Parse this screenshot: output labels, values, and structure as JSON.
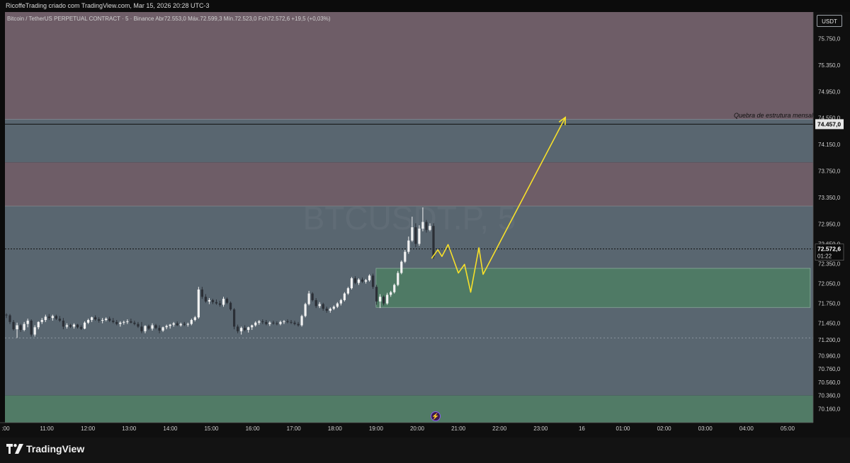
{
  "header": {
    "text": "RicoffeTrading criado com TradingView.com, Mar 15, 2026 20:28 UTC-3"
  },
  "symbol": {
    "line": "Bitcoin / TetherUS PERPETUAL CONTRACT · 5 · Binance  Abr72.553,0  Máx.72.599,3  Mín.72.523,0  Fch72.572,6  +19,5 (+0,03%)",
    "watermark": "BTCUSDT.P, 5"
  },
  "currency": "USDT",
  "annotations": {
    "level_note": "Quebra de estrutura mensal"
  },
  "branding": {
    "logo_text": "TradingView"
  },
  "chart_data": {
    "type": "candlestick",
    "ylim": [
      69950,
      76150
    ],
    "y_ticks": [
      {
        "value": 75750,
        "label": "75.750,0"
      },
      {
        "value": 75350,
        "label": "75.350,0"
      },
      {
        "value": 74950,
        "label": "74.950,0"
      },
      {
        "value": 74550,
        "label": "74.550,0"
      },
      {
        "value": 74150,
        "label": "74.150,0"
      },
      {
        "value": 73750,
        "label": "73.750,0"
      },
      {
        "value": 73350,
        "label": "73.350,0"
      },
      {
        "value": 72950,
        "label": "72.950,0"
      },
      {
        "value": 72650,
        "label": "72.650,0"
      },
      {
        "value": 72350,
        "label": "72.350,0"
      },
      {
        "value": 72050,
        "label": "72.050,0"
      },
      {
        "value": 71750,
        "label": "71.750,0"
      },
      {
        "value": 71450,
        "label": "71.450,0"
      },
      {
        "value": 71200,
        "label": "71.200,0"
      },
      {
        "value": 70960,
        "label": "70.960,0"
      },
      {
        "value": 70760,
        "label": "70.760,0"
      },
      {
        "value": 70560,
        "label": "70.560,0"
      },
      {
        "value": 70360,
        "label": "70.360,0"
      },
      {
        "value": 70160,
        "label": "70.160,0"
      }
    ],
    "x_ticks": [
      {
        "hour": 10,
        "label": ":00"
      },
      {
        "hour": 11,
        "label": "11:00"
      },
      {
        "hour": 12,
        "label": "12:00"
      },
      {
        "hour": 13,
        "label": "13:00"
      },
      {
        "hour": 14,
        "label": "14:00"
      },
      {
        "hour": 15,
        "label": "15:00"
      },
      {
        "hour": 16,
        "label": "16:00"
      },
      {
        "hour": 17,
        "label": "17:00"
      },
      {
        "hour": 18,
        "label": "18:00"
      },
      {
        "hour": 19,
        "label": "19:00"
      },
      {
        "hour": 20,
        "label": "20:00"
      },
      {
        "hour": 21,
        "label": "21:00"
      },
      {
        "hour": 22,
        "label": "22:00"
      },
      {
        "hour": 23,
        "label": "23:00"
      },
      {
        "hour": 24,
        "label": "16"
      },
      {
        "hour": 25,
        "label": "01:00"
      },
      {
        "hour": 26,
        "label": "02:00"
      },
      {
        "hour": 27,
        "label": "03:00"
      },
      {
        "hour": 28,
        "label": "04:00"
      },
      {
        "hour": 29,
        "label": "05:00"
      }
    ],
    "zones": [
      {
        "name": "supply-upper",
        "from": 74530,
        "to": 76150,
        "color": "#6e5d67"
      },
      {
        "name": "middle-upper",
        "from": 73880,
        "to": 74530,
        "color": "#596670"
      },
      {
        "name": "supply-lower",
        "from": 73220,
        "to": 73880,
        "color": "#6e5d67"
      },
      {
        "name": "middle-lower",
        "from": 70360,
        "to": 73220,
        "color": "#596670"
      },
      {
        "name": "demand-bottom",
        "from": 69950,
        "to": 70360,
        "color": "#517b66"
      }
    ],
    "demand_box": {
      "from_hour": 19.0,
      "to_hour": 29.55,
      "low": 71690,
      "high": 72280,
      "color": "#4f7a65"
    },
    "levels": [
      {
        "price": 74457,
        "style": "solid",
        "label": "74.457,0"
      },
      {
        "price": 72572.6,
        "style": "dotted",
        "label": "72.572,6",
        "countdown": "01:22"
      },
      {
        "price": 71230,
        "style": "dotted-light"
      }
    ],
    "projection": [
      {
        "hour": 20.35,
        "price": 72430
      },
      {
        "hour": 20.5,
        "price": 72560
      },
      {
        "hour": 20.6,
        "price": 72460
      },
      {
        "hour": 20.75,
        "price": 72640
      },
      {
        "hour": 21.0,
        "price": 72210
      },
      {
        "hour": 21.15,
        "price": 72340
      },
      {
        "hour": 21.3,
        "price": 71920
      },
      {
        "hour": 21.5,
        "price": 72590
      },
      {
        "hour": 21.6,
        "price": 72190
      },
      {
        "hour": 23.6,
        "price": 74560
      }
    ],
    "candles": [
      {
        "o": 71580,
        "h": 71600,
        "l": 71530,
        "c": 71570
      },
      {
        "o": 71570,
        "h": 71590,
        "l": 71440,
        "c": 71470
      },
      {
        "o": 71470,
        "h": 71500,
        "l": 71340,
        "c": 71360
      },
      {
        "o": 71360,
        "h": 71460,
        "l": 71230,
        "c": 71420
      },
      {
        "o": 71420,
        "h": 71440,
        "l": 71320,
        "c": 71350
      },
      {
        "o": 71350,
        "h": 71470,
        "l": 71330,
        "c": 71440
      },
      {
        "o": 71440,
        "h": 71520,
        "l": 71390,
        "c": 71490
      },
      {
        "o": 71490,
        "h": 71510,
        "l": 71250,
        "c": 71280
      },
      {
        "o": 71280,
        "h": 71420,
        "l": 71250,
        "c": 71390
      },
      {
        "o": 71390,
        "h": 71480,
        "l": 71360,
        "c": 71470
      },
      {
        "o": 71470,
        "h": 71530,
        "l": 71440,
        "c": 71500
      },
      {
        "o": 71500,
        "h": 71580,
        "l": 71470,
        "c": 71550
      },
      {
        "o": 71550,
        "h": 71590,
        "l": 71500,
        "c": 71530
      },
      {
        "o": 71530,
        "h": 71580,
        "l": 71490,
        "c": 71560
      },
      {
        "o": 71560,
        "h": 71580,
        "l": 71500,
        "c": 71520
      },
      {
        "o": 71520,
        "h": 71560,
        "l": 71470,
        "c": 71490
      },
      {
        "o": 71490,
        "h": 71530,
        "l": 71360,
        "c": 71400
      },
      {
        "o": 71400,
        "h": 71450,
        "l": 71370,
        "c": 71420
      },
      {
        "o": 71420,
        "h": 71440,
        "l": 71380,
        "c": 71400
      },
      {
        "o": 71400,
        "h": 71450,
        "l": 71370,
        "c": 71430
      },
      {
        "o": 71430,
        "h": 71440,
        "l": 71370,
        "c": 71390
      },
      {
        "o": 71390,
        "h": 71420,
        "l": 71350,
        "c": 71370
      },
      {
        "o": 71370,
        "h": 71480,
        "l": 71360,
        "c": 71460
      },
      {
        "o": 71460,
        "h": 71520,
        "l": 71440,
        "c": 71500
      },
      {
        "o": 71500,
        "h": 71550,
        "l": 71470,
        "c": 71540
      },
      {
        "o": 71540,
        "h": 71570,
        "l": 71490,
        "c": 71510
      },
      {
        "o": 71510,
        "h": 71540,
        "l": 71460,
        "c": 71490
      },
      {
        "o": 71490,
        "h": 71530,
        "l": 71450,
        "c": 71500
      },
      {
        "o": 71500,
        "h": 71540,
        "l": 71480,
        "c": 71520
      },
      {
        "o": 71520,
        "h": 71550,
        "l": 71470,
        "c": 71490
      },
      {
        "o": 71490,
        "h": 71530,
        "l": 71450,
        "c": 71470
      },
      {
        "o": 71470,
        "h": 71500,
        "l": 71420,
        "c": 71440
      },
      {
        "o": 71440,
        "h": 71480,
        "l": 71400,
        "c": 71460
      },
      {
        "o": 71460,
        "h": 71490,
        "l": 71430,
        "c": 71470
      },
      {
        "o": 71470,
        "h": 71510,
        "l": 71440,
        "c": 71480
      },
      {
        "o": 71480,
        "h": 71520,
        "l": 71450,
        "c": 71460
      },
      {
        "o": 71460,
        "h": 71490,
        "l": 71420,
        "c": 71440
      },
      {
        "o": 71440,
        "h": 71470,
        "l": 71380,
        "c": 71400
      },
      {
        "o": 71400,
        "h": 71470,
        "l": 71300,
        "c": 71330
      },
      {
        "o": 71330,
        "h": 71420,
        "l": 71300,
        "c": 71410
      },
      {
        "o": 71410,
        "h": 71430,
        "l": 71350,
        "c": 71370
      },
      {
        "o": 71370,
        "h": 71450,
        "l": 71340,
        "c": 71420
      },
      {
        "o": 71420,
        "h": 71440,
        "l": 71360,
        "c": 71380
      },
      {
        "o": 71380,
        "h": 71420,
        "l": 71300,
        "c": 71340
      },
      {
        "o": 71340,
        "h": 71400,
        "l": 71320,
        "c": 71390
      },
      {
        "o": 71390,
        "h": 71430,
        "l": 71360,
        "c": 71410
      },
      {
        "o": 71410,
        "h": 71440,
        "l": 71370,
        "c": 71430
      },
      {
        "o": 71430,
        "h": 71470,
        "l": 71400,
        "c": 71450
      },
      {
        "o": 71450,
        "h": 71480,
        "l": 71410,
        "c": 71420
      },
      {
        "o": 71420,
        "h": 71460,
        "l": 71400,
        "c": 71440
      },
      {
        "o": 71440,
        "h": 71470,
        "l": 71410,
        "c": 71430
      },
      {
        "o": 71430,
        "h": 71460,
        "l": 71400,
        "c": 71440
      },
      {
        "o": 71440,
        "h": 71520,
        "l": 71420,
        "c": 71500
      },
      {
        "o": 71500,
        "h": 71560,
        "l": 71480,
        "c": 71540
      },
      {
        "o": 71540,
        "h": 72000,
        "l": 71520,
        "c": 71960
      },
      {
        "o": 71960,
        "h": 72000,
        "l": 71820,
        "c": 71850
      },
      {
        "o": 71850,
        "h": 71890,
        "l": 71760,
        "c": 71780
      },
      {
        "o": 71780,
        "h": 71830,
        "l": 71740,
        "c": 71800
      },
      {
        "o": 71800,
        "h": 71820,
        "l": 71740,
        "c": 71770
      },
      {
        "o": 71770,
        "h": 71810,
        "l": 71730,
        "c": 71750
      },
      {
        "o": 71750,
        "h": 71790,
        "l": 71700,
        "c": 71730
      },
      {
        "o": 71730,
        "h": 71850,
        "l": 71700,
        "c": 71820
      },
      {
        "o": 71820,
        "h": 71840,
        "l": 71740,
        "c": 71760
      },
      {
        "o": 71760,
        "h": 71780,
        "l": 71640,
        "c": 71660
      },
      {
        "o": 71660,
        "h": 71680,
        "l": 71360,
        "c": 71400
      },
      {
        "o": 71400,
        "h": 71430,
        "l": 71300,
        "c": 71330
      },
      {
        "o": 71330,
        "h": 71400,
        "l": 71280,
        "c": 71380
      },
      {
        "o": 71380,
        "h": 71420,
        "l": 71330,
        "c": 71350
      },
      {
        "o": 71350,
        "h": 71400,
        "l": 71310,
        "c": 71390
      },
      {
        "o": 71390,
        "h": 71430,
        "l": 71350,
        "c": 71420
      },
      {
        "o": 71420,
        "h": 71480,
        "l": 71400,
        "c": 71460
      },
      {
        "o": 71460,
        "h": 71500,
        "l": 71430,
        "c": 71480
      },
      {
        "o": 71480,
        "h": 71510,
        "l": 71440,
        "c": 71470
      },
      {
        "o": 71470,
        "h": 71500,
        "l": 71420,
        "c": 71440
      },
      {
        "o": 71440,
        "h": 71480,
        "l": 71410,
        "c": 71460
      },
      {
        "o": 71460,
        "h": 71490,
        "l": 71430,
        "c": 71450
      },
      {
        "o": 71450,
        "h": 71480,
        "l": 71420,
        "c": 71440
      },
      {
        "o": 71440,
        "h": 71490,
        "l": 71420,
        "c": 71470
      },
      {
        "o": 71470,
        "h": 71500,
        "l": 71440,
        "c": 71480
      },
      {
        "o": 71480,
        "h": 71510,
        "l": 71450,
        "c": 71470
      },
      {
        "o": 71470,
        "h": 71500,
        "l": 71440,
        "c": 71460
      },
      {
        "o": 71460,
        "h": 71490,
        "l": 71420,
        "c": 71440
      },
      {
        "o": 71440,
        "h": 71470,
        "l": 71400,
        "c": 71420
      },
      {
        "o": 71420,
        "h": 71580,
        "l": 71400,
        "c": 71560
      },
      {
        "o": 71560,
        "h": 71760,
        "l": 71540,
        "c": 71740
      },
      {
        "o": 71740,
        "h": 71940,
        "l": 71720,
        "c": 71900
      },
      {
        "o": 71900,
        "h": 71920,
        "l": 71780,
        "c": 71800
      },
      {
        "o": 71800,
        "h": 71830,
        "l": 71680,
        "c": 71710
      },
      {
        "o": 71710,
        "h": 71770,
        "l": 71680,
        "c": 71740
      },
      {
        "o": 71740,
        "h": 71760,
        "l": 71640,
        "c": 71670
      },
      {
        "o": 71670,
        "h": 71700,
        "l": 71610,
        "c": 71640
      },
      {
        "o": 71640,
        "h": 71690,
        "l": 71610,
        "c": 71670
      },
      {
        "o": 71670,
        "h": 71720,
        "l": 71650,
        "c": 71700
      },
      {
        "o": 71700,
        "h": 71770,
        "l": 71680,
        "c": 71750
      },
      {
        "o": 71750,
        "h": 71820,
        "l": 71720,
        "c": 71800
      },
      {
        "o": 71800,
        "h": 71920,
        "l": 71780,
        "c": 71900
      },
      {
        "o": 71900,
        "h": 72000,
        "l": 71880,
        "c": 71980
      },
      {
        "o": 71980,
        "h": 72150,
        "l": 71960,
        "c": 72130
      },
      {
        "o": 72130,
        "h": 72160,
        "l": 72040,
        "c": 72060
      },
      {
        "o": 72060,
        "h": 72130,
        "l": 72030,
        "c": 72110
      },
      {
        "o": 72110,
        "h": 72140,
        "l": 72060,
        "c": 72080
      },
      {
        "o": 72080,
        "h": 72120,
        "l": 72050,
        "c": 72100
      },
      {
        "o": 72100,
        "h": 72190,
        "l": 72080,
        "c": 72170
      },
      {
        "o": 72170,
        "h": 72200,
        "l": 71970,
        "c": 72000
      },
      {
        "o": 72000,
        "h": 72030,
        "l": 71730,
        "c": 71780
      },
      {
        "o": 71780,
        "h": 71890,
        "l": 71680,
        "c": 71850
      },
      {
        "o": 71850,
        "h": 71870,
        "l": 71720,
        "c": 71750
      },
      {
        "o": 71750,
        "h": 71910,
        "l": 71730,
        "c": 71880
      },
      {
        "o": 71880,
        "h": 71940,
        "l": 71850,
        "c": 71920
      },
      {
        "o": 71920,
        "h": 72050,
        "l": 71900,
        "c": 72030
      },
      {
        "o": 72030,
        "h": 72240,
        "l": 72010,
        "c": 72210
      },
      {
        "o": 72210,
        "h": 72400,
        "l": 72190,
        "c": 72380
      },
      {
        "o": 72380,
        "h": 72560,
        "l": 72360,
        "c": 72530
      },
      {
        "o": 72530,
        "h": 72760,
        "l": 72500,
        "c": 72700
      },
      {
        "o": 72700,
        "h": 73060,
        "l": 72680,
        "c": 72900
      },
      {
        "o": 72900,
        "h": 72960,
        "l": 72600,
        "c": 72650
      },
      {
        "o": 72650,
        "h": 72930,
        "l": 72620,
        "c": 72880
      },
      {
        "o": 72880,
        "h": 73200,
        "l": 72840,
        "c": 72980
      },
      {
        "o": 72980,
        "h": 73010,
        "l": 72820,
        "c": 72860
      },
      {
        "o": 72860,
        "h": 72960,
        "l": 72840,
        "c": 72920
      },
      {
        "o": 72920,
        "h": 72960,
        "l": 72420,
        "c": 72450
      }
    ]
  }
}
